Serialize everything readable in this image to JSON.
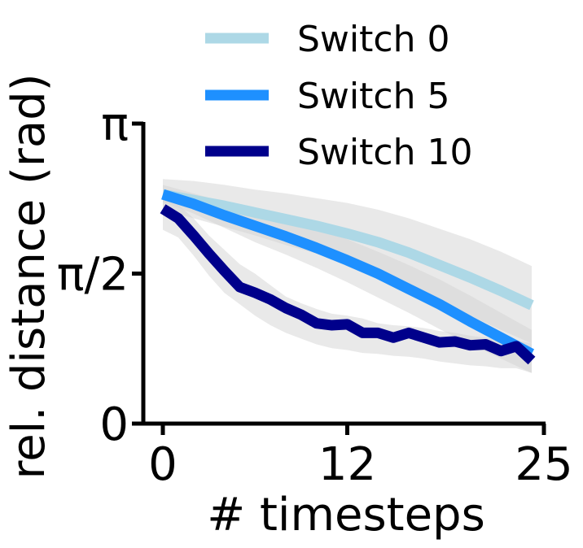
{
  "chart_data": {
    "type": "line",
    "xlabel": "# timesteps",
    "ylabel": "rel. distance (rad)",
    "xlim": [
      -1,
      25
    ],
    "ylim": [
      0,
      3.14159
    ],
    "xticks": [
      0,
      12,
      25
    ],
    "xtick_labels": [
      "0",
      "12",
      "25"
    ],
    "yticks": [
      0,
      1.5708,
      3.14159
    ],
    "ytick_labels": [
      "0",
      "π/2",
      "π"
    ],
    "grid": false,
    "legend_position": "top",
    "series": [
      {
        "name": "Switch 0",
        "color": "#add8e6",
        "x": [
          0,
          2,
          4,
          6,
          8,
          10,
          12,
          14,
          16,
          18,
          20,
          22,
          24
        ],
        "y": [
          2.4,
          2.34,
          2.28,
          2.21,
          2.14,
          2.07,
          1.99,
          1.9,
          1.79,
          1.66,
          1.53,
          1.39,
          1.24
        ],
        "band_low": [
          2.24,
          2.15,
          2.06,
          1.97,
          1.87,
          1.78,
          1.67,
          1.56,
          1.43,
          1.28,
          1.13,
          0.98,
          0.84
        ],
        "band_high": [
          2.56,
          2.54,
          2.5,
          2.45,
          2.41,
          2.36,
          2.31,
          2.24,
          2.15,
          2.04,
          1.93,
          1.8,
          1.65
        ]
      },
      {
        "name": "Switch 5",
        "color": "#1e90ff",
        "x": [
          0,
          2,
          4,
          6,
          8,
          10,
          12,
          14,
          16,
          18,
          20,
          22,
          24
        ],
        "y": [
          2.4,
          2.3,
          2.18,
          2.07,
          1.96,
          1.84,
          1.71,
          1.57,
          1.41,
          1.25,
          1.07,
          0.9,
          0.73
        ],
        "band_low": [
          2.32,
          2.2,
          2.05,
          1.9,
          1.77,
          1.63,
          1.48,
          1.32,
          1.16,
          0.99,
          0.83,
          0.68,
          0.53
        ],
        "band_high": [
          2.5,
          2.41,
          2.32,
          2.23,
          2.14,
          2.04,
          1.93,
          1.8,
          1.66,
          1.51,
          1.34,
          1.16,
          0.98
        ]
      },
      {
        "name": "Switch 10",
        "color": "#00008b",
        "x": [
          0,
          1,
          2,
          3,
          4,
          5,
          6,
          7,
          8,
          9,
          10,
          11,
          12,
          13,
          14,
          15,
          16,
          17,
          18,
          19,
          20,
          21,
          22,
          23,
          24
        ],
        "y": [
          2.25,
          2.15,
          1.97,
          1.78,
          1.6,
          1.43,
          1.37,
          1.3,
          1.21,
          1.14,
          1.05,
          1.03,
          1.04,
          0.95,
          0.95,
          0.9,
          0.95,
          0.9,
          0.85,
          0.86,
          0.82,
          0.83,
          0.76,
          0.81,
          0.66
        ],
        "band_low": [
          2.03,
          1.95,
          1.76,
          1.55,
          1.37,
          1.25,
          1.13,
          1.03,
          0.95,
          0.89,
          0.83,
          0.79,
          0.77,
          0.74,
          0.73,
          0.71,
          0.7,
          0.68,
          0.65,
          0.63,
          0.61,
          0.6,
          0.58,
          0.58,
          0.53
        ],
        "band_high": [
          2.37,
          2.29,
          2.15,
          1.97,
          1.82,
          1.67,
          1.57,
          1.45,
          1.33,
          1.26,
          1.2,
          1.15,
          1.13,
          1.1,
          1.05,
          1.03,
          1.02,
          1.0,
          0.97,
          0.95,
          0.92,
          0.9,
          0.88,
          0.87,
          0.84
        ]
      }
    ]
  },
  "colors": {
    "band": "#d3d3d3",
    "axis": "#000000"
  }
}
